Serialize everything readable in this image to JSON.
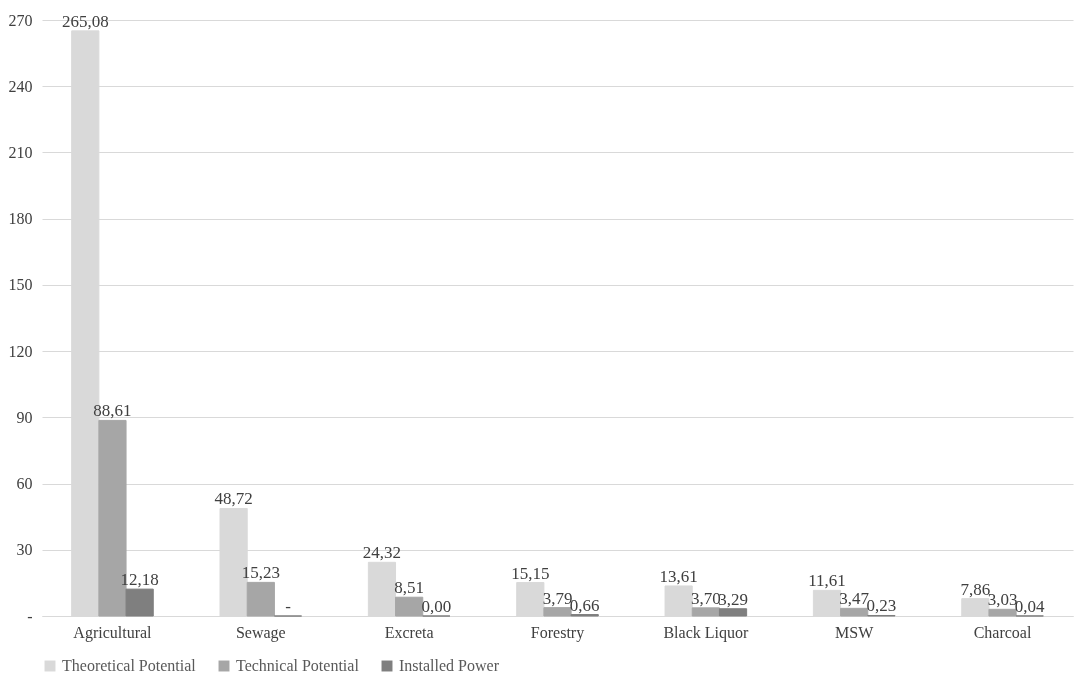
{
  "chart_data": {
    "type": "bar",
    "categories": [
      "Agricultural",
      "Sewage",
      "Excreta",
      "Forestry",
      "Black Liquor",
      "MSW",
      "Charcoal"
    ],
    "series": [
      {
        "name": "Theoretical Potential",
        "color": "#d9d9d9",
        "values": [
          265.08,
          48.72,
          24.32,
          15.15,
          13.61,
          11.61,
          7.86
        ],
        "value_labels": [
          "265,08",
          "48,72",
          "24,32",
          "15,15",
          "13,61",
          "11,61",
          "7,86"
        ]
      },
      {
        "name": "Technical Potential",
        "color": "#a6a6a6",
        "values": [
          88.61,
          15.23,
          8.51,
          3.79,
          3.7,
          3.47,
          3.03
        ],
        "value_labels": [
          "88,61",
          "15,23",
          "8,51",
          "3,79",
          "3,70",
          "3,47",
          "3,03"
        ]
      },
      {
        "name": "Installed Power",
        "color": "#7f7f7f",
        "values": [
          12.18,
          0,
          0.0,
          0.66,
          3.29,
          0.23,
          0.04
        ],
        "value_labels": [
          "12,18",
          "-",
          "0,00",
          "0,66",
          "3,29",
          "0,23",
          "0,04"
        ]
      }
    ],
    "ylim": [
      0,
      270
    ],
    "yticks": [
      {
        "value": 0,
        "label": "-"
      },
      30,
      60,
      90,
      120,
      150,
      180,
      210,
      240,
      270
    ],
    "grid": "y",
    "legend": "bottom"
  }
}
